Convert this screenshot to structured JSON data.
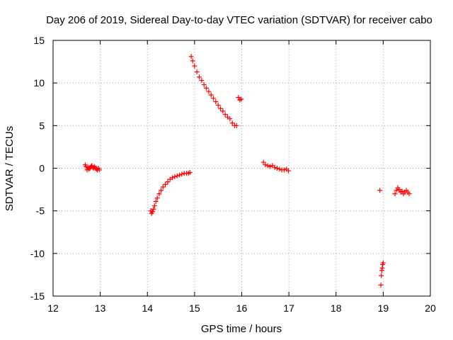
{
  "chart_data": {
    "type": "scatter",
    "title": "Day 206 of 2019, Sidereal Day-to-day VTEC variation (SDTVAR) for receiver cabo",
    "xlabel": "GPS time / hours",
    "ylabel": "SDTVAR / TECUs",
    "xlim": [
      12,
      20
    ],
    "ylim": [
      -15,
      15
    ],
    "xticks": [
      "12",
      "13",
      "14",
      "15",
      "16",
      "17",
      "18",
      "19",
      "20"
    ],
    "yticks": [
      "15",
      "10",
      "5",
      "0",
      "-5",
      "-10",
      "-15"
    ],
    "grid": true,
    "marker": "+",
    "color": "#ff0000",
    "series": [
      {
        "name": "SDTVAR",
        "x": [
          12.68,
          12.7,
          12.72,
          12.74,
          12.76,
          12.78,
          12.8,
          12.82,
          12.84,
          12.86,
          12.88,
          12.9,
          12.92,
          12.94,
          12.96,
          12.98,
          14.07,
          14.09,
          14.11,
          14.13,
          14.15,
          14.18,
          14.21,
          14.25,
          14.29,
          14.33,
          14.38,
          14.43,
          14.48,
          14.53,
          14.58,
          14.63,
          14.68,
          14.73,
          14.78,
          14.83,
          14.87,
          14.9,
          14.93,
          14.96,
          15.0,
          15.05,
          15.1,
          15.15,
          15.2,
          15.25,
          15.3,
          15.35,
          15.4,
          15.45,
          15.5,
          15.55,
          15.6,
          15.65,
          15.7,
          15.75,
          15.8,
          15.85,
          15.89,
          15.93,
          15.96,
          15.99,
          16.46,
          16.5,
          16.55,
          16.6,
          16.65,
          16.7,
          16.75,
          16.8,
          16.85,
          16.9,
          16.95,
          16.99,
          18.93,
          18.95,
          18.96,
          18.97,
          18.98,
          18.99,
          19.0,
          19.25,
          19.28,
          19.31,
          19.34,
          19.37,
          19.4,
          19.43,
          19.46,
          19.49,
          19.52,
          19.55
        ],
        "y": [
          0.4,
          0.2,
          -0.2,
          0.1,
          -0.1,
          0.0,
          0.2,
          0.3,
          0.1,
          0.0,
          0.2,
          0.0,
          -0.1,
          -0.2,
          0.0,
          -0.2,
          -5.0,
          -5.3,
          -5.1,
          -4.8,
          -4.4,
          -3.9,
          -3.5,
          -3.0,
          -2.6,
          -2.2,
          -1.9,
          -1.6,
          -1.3,
          -1.1,
          -1.0,
          -0.9,
          -0.8,
          -0.7,
          -0.6,
          -0.6,
          -0.6,
          -0.5,
          13.1,
          12.6,
          12.0,
          11.3,
          10.7,
          10.3,
          9.8,
          9.4,
          9.0,
          8.6,
          8.2,
          7.8,
          7.4,
          7.0,
          6.7,
          6.3,
          6.0,
          5.8,
          5.3,
          5.0,
          5.0,
          8.3,
          8.0,
          8.1,
          0.7,
          0.4,
          0.3,
          0.2,
          0.3,
          0.1,
          0.0,
          -0.1,
          -0.2,
          -0.2,
          -0.1,
          -0.3,
          -2.6,
          -13.7,
          -12.6,
          -12.0,
          -11.7,
          -11.3,
          -11.1,
          -3.0,
          -2.6,
          -2.3,
          -2.5,
          -2.8,
          -2.7,
          -3.0,
          -2.8,
          -2.6,
          -2.8,
          -3.0
        ]
      }
    ]
  }
}
